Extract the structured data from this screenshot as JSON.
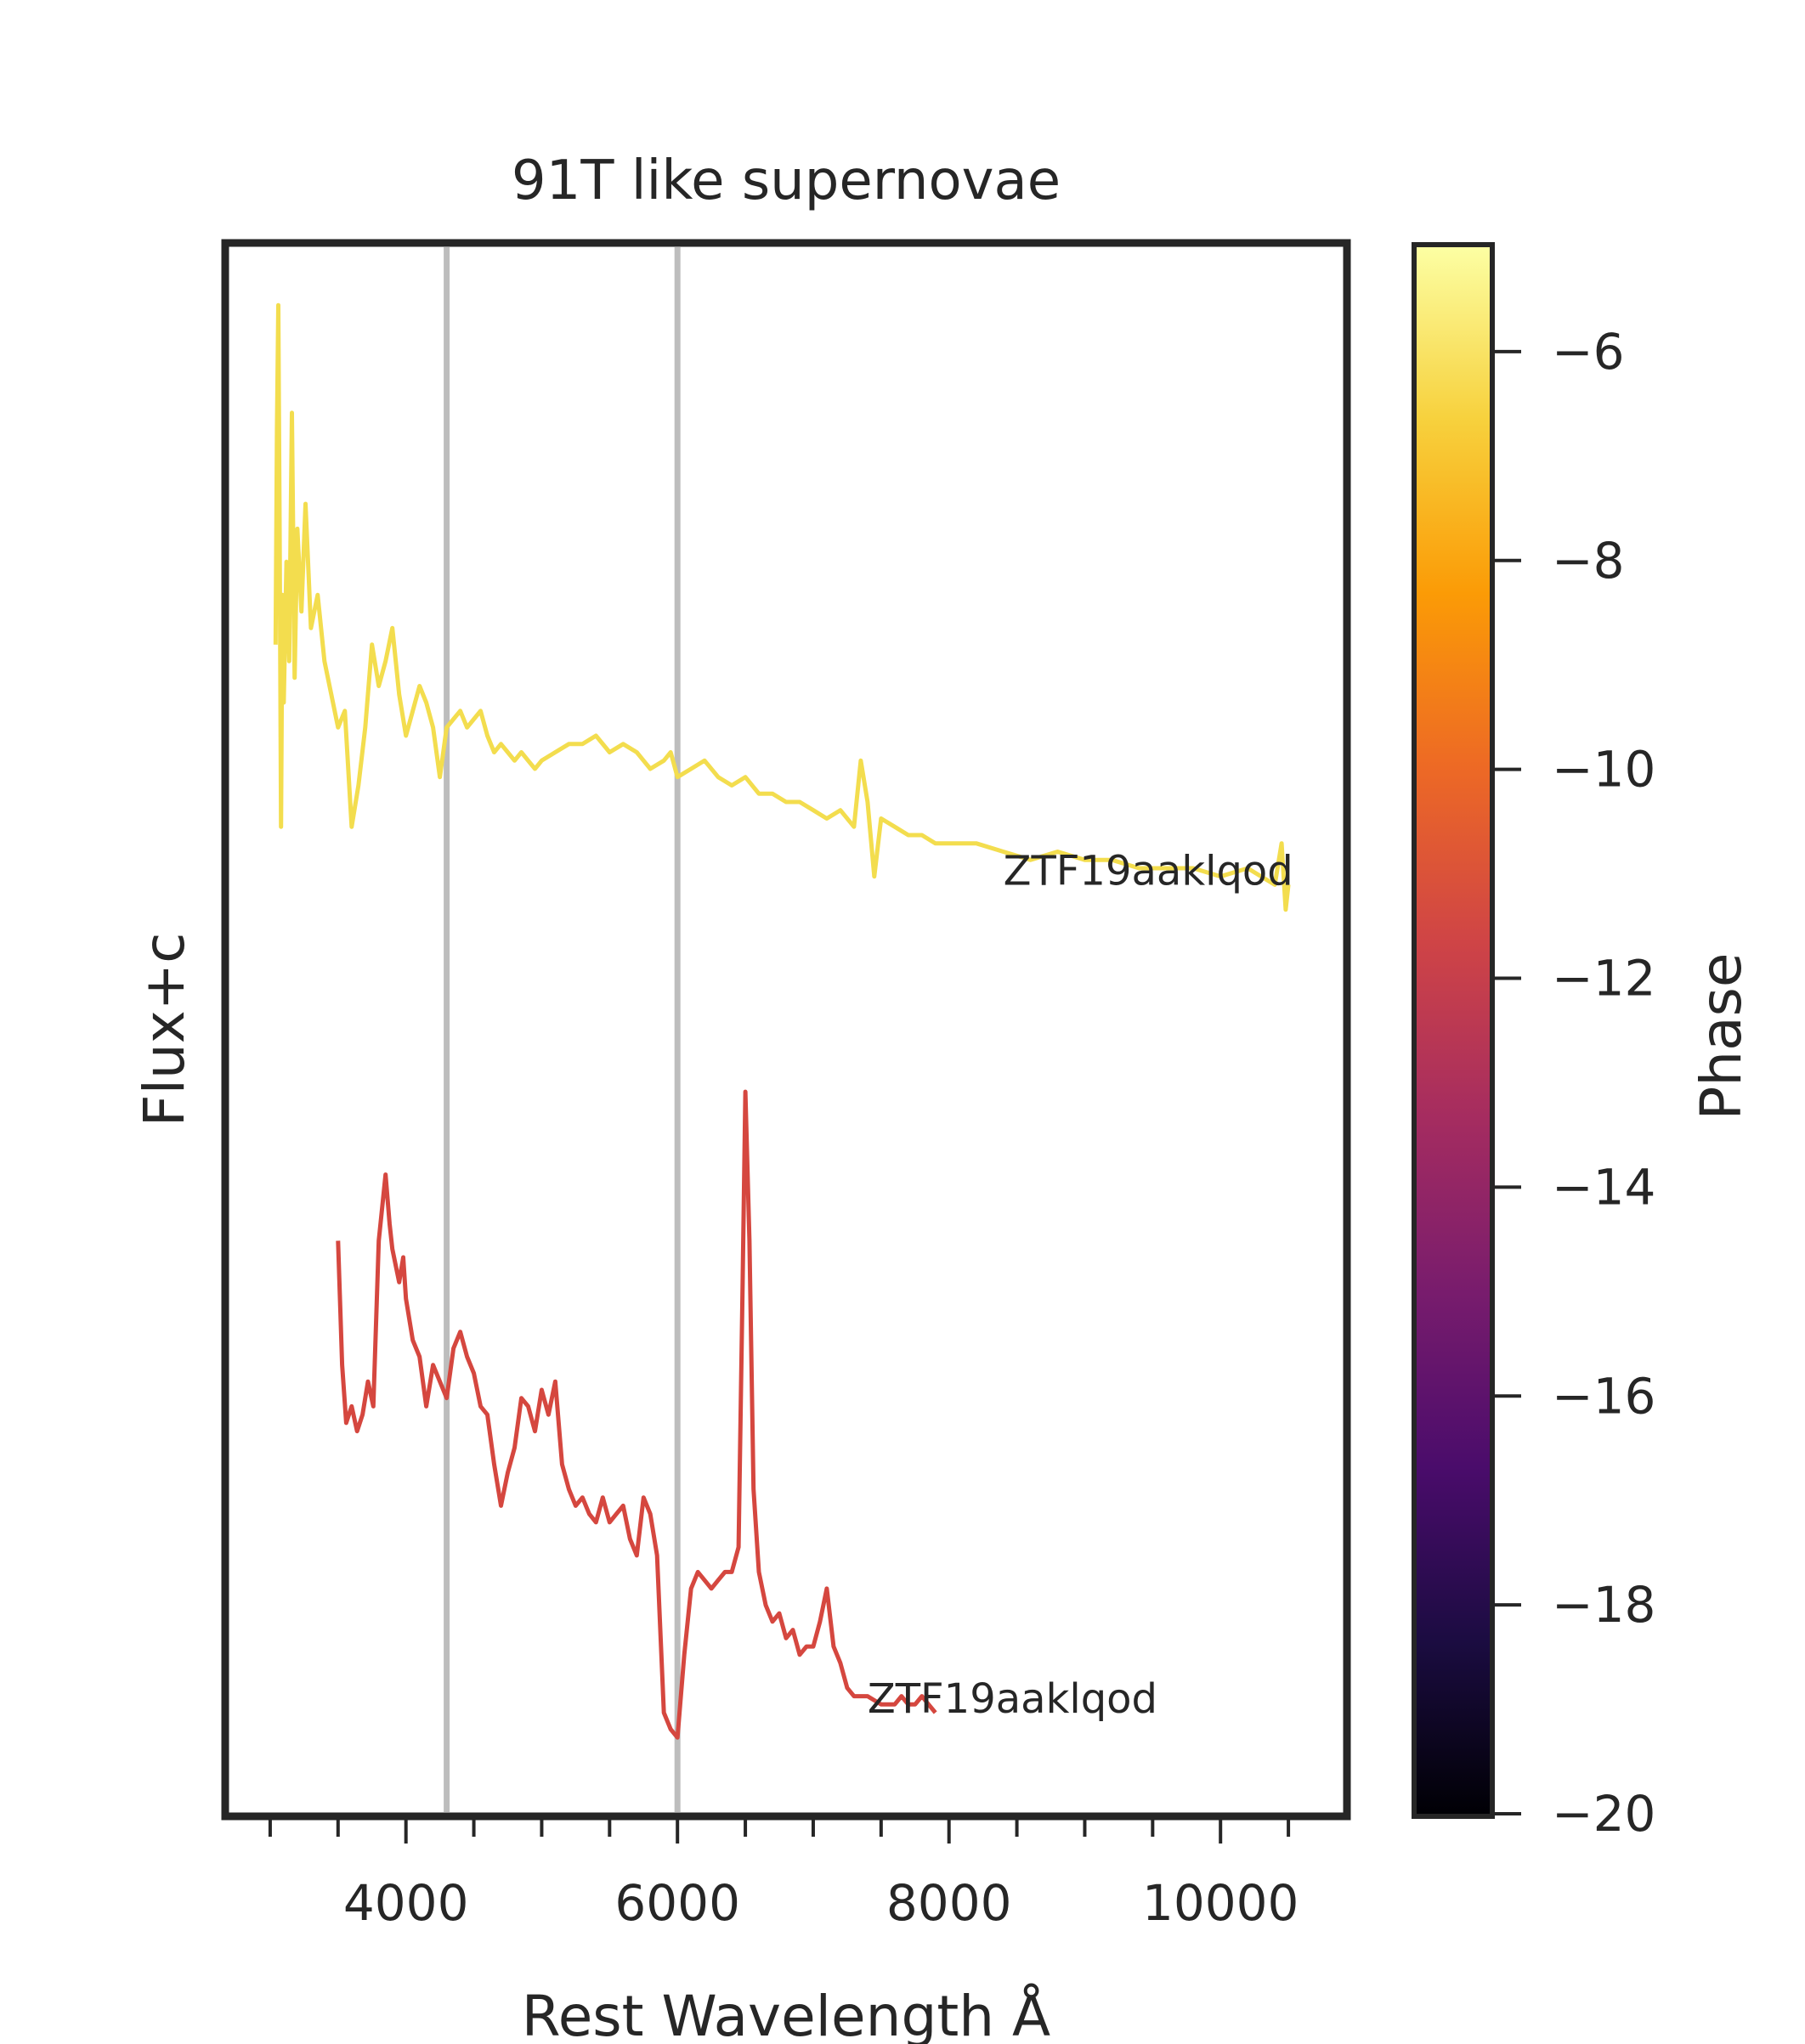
{
  "chart_data": {
    "type": "line",
    "title": "91T like supernovae",
    "xlabel": "Rest Wavelength Å",
    "ylabel": "Flux+c",
    "xlim": [
      2700,
      10900
    ],
    "x_ticks": [
      4000,
      6000,
      8000,
      10000
    ],
    "x_tick_labels": [
      "4000",
      "6000",
      "8000",
      "10000"
    ],
    "x_minor_ticks": [
      3000,
      3500,
      4500,
      5000,
      5500,
      6500,
      7000,
      7500,
      8500,
      9000,
      9500,
      10500
    ],
    "y_ticks_shown": false,
    "grid": false,
    "vertical_lines": [
      {
        "x": 4300,
        "color": "#bdbdbd"
      },
      {
        "x": 6000,
        "color": "#bdbdbd"
      }
    ],
    "series": [
      {
        "name": "ZTF19aaklqod",
        "phase": -6.5,
        "color": "#f3dd4e",
        "label_x": 8400,
        "x": [
          3040,
          3050,
          3060,
          3070,
          3080,
          3090,
          3100,
          3120,
          3140,
          3160,
          3180,
          3200,
          3230,
          3260,
          3300,
          3350,
          3400,
          3450,
          3500,
          3550,
          3600,
          3650,
          3700,
          3750,
          3800,
          3850,
          3900,
          3950,
          4000,
          4050,
          4100,
          4150,
          4200,
          4250,
          4300,
          4350,
          4400,
          4450,
          4500,
          4550,
          4600,
          4650,
          4700,
          4750,
          4800,
          4850,
          4900,
          4950,
          5000,
          5100,
          5200,
          5300,
          5400,
          5500,
          5600,
          5700,
          5800,
          5900,
          5950,
          6000,
          6100,
          6200,
          6300,
          6400,
          6500,
          6600,
          6700,
          6800,
          6900,
          7000,
          7100,
          7200,
          7300,
          7350,
          7400,
          7450,
          7500,
          7600,
          7700,
          7800,
          7900,
          8000,
          8200,
          8400,
          8600,
          8800,
          9000,
          9200,
          9400,
          9600,
          9800,
          10000,
          10200,
          10300,
          10400,
          10450,
          10480,
          10500
        ],
        "y": [
          13.2,
          15.8,
          17.3,
          14.5,
          11.0,
          13.8,
          12.5,
          14.2,
          13.0,
          16.0,
          12.8,
          14.6,
          13.6,
          14.9,
          13.4,
          13.8,
          13.0,
          12.6,
          12.2,
          12.4,
          11.0,
          11.5,
          12.2,
          13.2,
          12.7,
          13.0,
          13.4,
          12.6,
          12.1,
          12.4,
          12.7,
          12.5,
          12.2,
          11.6,
          12.2,
          12.3,
          12.4,
          12.2,
          12.3,
          12.4,
          12.1,
          11.9,
          12.0,
          11.9,
          11.8,
          11.9,
          11.8,
          11.7,
          11.8,
          11.9,
          12.0,
          12.0,
          12.1,
          11.9,
          12.0,
          11.9,
          11.7,
          11.8,
          11.9,
          11.6,
          11.7,
          11.8,
          11.6,
          11.5,
          11.6,
          11.4,
          11.4,
          11.3,
          11.3,
          11.2,
          11.1,
          11.2,
          11.0,
          11.8,
          11.3,
          10.4,
          11.1,
          11.0,
          10.9,
          10.9,
          10.8,
          10.8,
          10.8,
          10.7,
          10.6,
          10.7,
          10.6,
          10.6,
          10.5,
          10.5,
          10.5,
          10.4,
          10.5,
          10.4,
          10.3,
          10.8,
          10.0,
          10.3
        ]
      },
      {
        "name": "ZTF19aaklqod",
        "phase": -11.0,
        "color": "#d5473f",
        "label_x": 7400,
        "x": [
          3500,
          3530,
          3560,
          3600,
          3640,
          3680,
          3720,
          3760,
          3800,
          3850,
          3880,
          3900,
          3950,
          3980,
          4000,
          4050,
          4100,
          4150,
          4200,
          4250,
          4300,
          4350,
          4400,
          4450,
          4500,
          4550,
          4600,
          4650,
          4700,
          4750,
          4800,
          4850,
          4900,
          4950,
          5000,
          5050,
          5100,
          5150,
          5200,
          5250,
          5300,
          5350,
          5400,
          5450,
          5500,
          5550,
          5600,
          5650,
          5700,
          5750,
          5800,
          5850,
          5900,
          5950,
          6000,
          6050,
          6100,
          6150,
          6200,
          6250,
          6300,
          6350,
          6400,
          6450,
          6480,
          6500,
          6530,
          6560,
          6600,
          6650,
          6700,
          6750,
          6800,
          6850,
          6900,
          6950,
          7000,
          7050,
          7100,
          7150,
          7200,
          7250,
          7300,
          7400,
          7500,
          7600,
          7650,
          7700,
          7750,
          7800,
          7850,
          7900
        ],
        "y": [
          6.0,
          4.5,
          3.8,
          4.0,
          3.7,
          3.9,
          4.3,
          4.0,
          6.0,
          6.8,
          6.2,
          5.9,
          5.5,
          5.8,
          5.3,
          4.8,
          4.6,
          4.0,
          4.5,
          4.3,
          4.1,
          4.7,
          4.9,
          4.6,
          4.4,
          4.0,
          3.9,
          3.3,
          2.8,
          3.2,
          3.5,
          4.1,
          4.0,
          3.7,
          4.2,
          3.9,
          4.3,
          3.3,
          3.0,
          2.8,
          2.9,
          2.7,
          2.6,
          2.9,
          2.6,
          2.7,
          2.8,
          2.4,
          2.2,
          2.9,
          2.7,
          2.2,
          0.3,
          0.1,
          0.0,
          1.0,
          1.8,
          2.0,
          1.9,
          1.8,
          1.9,
          2.0,
          2.0,
          2.3,
          5.5,
          7.8,
          6.0,
          3.0,
          2.0,
          1.6,
          1.4,
          1.5,
          1.2,
          1.3,
          1.0,
          1.1,
          1.1,
          1.4,
          1.8,
          1.1,
          0.9,
          0.6,
          0.5,
          0.5,
          0.4,
          0.4,
          0.5,
          0.4,
          0.4,
          0.5,
          0.4,
          0.3
        ]
      }
    ],
    "ylim": [
      -0.9,
      18.0
    ],
    "colorbar": {
      "label": "Phase",
      "colormap": "inferno",
      "range": [
        -20,
        -5
      ],
      "ticks": [
        -6,
        -8,
        -10,
        -12,
        -14,
        -16,
        -18,
        -20
      ],
      "tick_labels": [
        "−6",
        "−8",
        "−10",
        "−12",
        "−14",
        "−16",
        "−18",
        "−20"
      ],
      "stops": [
        "#000004",
        "#1b0c41",
        "#4a0c6b",
        "#781c6d",
        "#a52c60",
        "#cf4446",
        "#ed6925",
        "#fb9b06",
        "#f7d13d",
        "#fcffa4"
      ]
    }
  }
}
